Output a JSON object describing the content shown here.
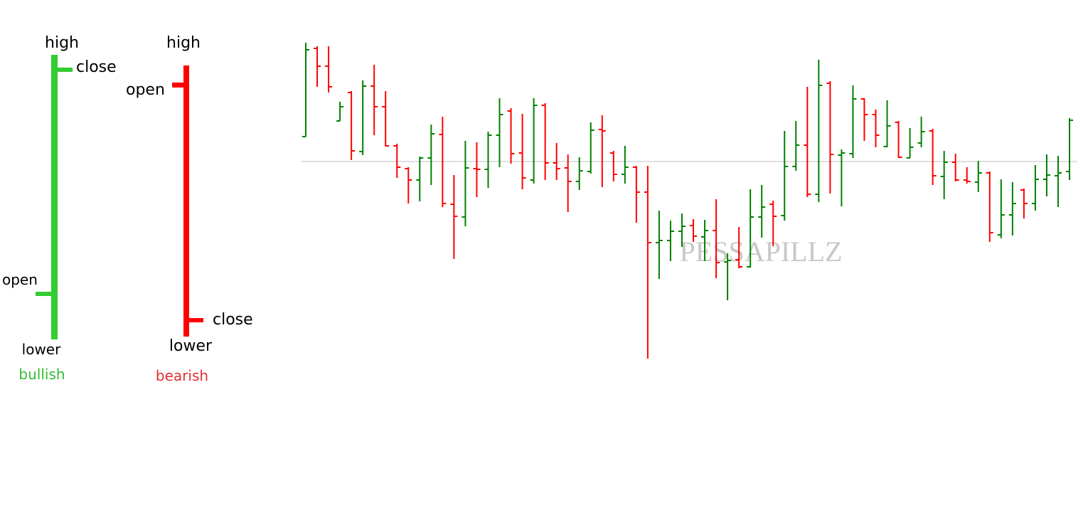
{
  "legend_diagram": {
    "bullish": {
      "label": "bullish",
      "high": "high",
      "close": "close",
      "open": "open",
      "low": "lower"
    },
    "bearish": {
      "label": "bearish",
      "high": "high",
      "open": "open",
      "close": "close",
      "low": "lower"
    }
  },
  "chart_data": {
    "type": "ohlc",
    "watermark": "PESSAPILLZ",
    "up_color": "#008000",
    "down_color": "#ff0000",
    "reference_line": 293,
    "ylim": [
      0,
      480
    ],
    "open": [
      328,
      452,
      427,
      350,
      390,
      307,
      399,
      370,
      315,
      283,
      267,
      298,
      331,
      233,
      215,
      283,
      282,
      330,
      364,
      305,
      267,
      372,
      291,
      284,
      265,
      279,
      338,
      305,
      275,
      285,
      250,
      179,
      182,
      195,
      203,
      187,
      196,
      152,
      155,
      145,
      215,
      233,
      217,
      286,
      316,
      247,
      403,
      302,
      304,
      381,
      359,
      314,
      348,
      298,
      319,
      336,
      272,
      292,
      267,
      264,
      277,
      190,
      218,
      253,
      234,
      268,
      273,
      279
    ],
    "high": [
      460,
      455,
      455,
      377,
      392,
      407,
      429,
      392,
      318,
      285,
      300,
      345,
      356,
      274,
      322,
      320,
      335,
      382,
      368,
      360,
      382,
      375,
      319,
      303,
      299,
      348,
      358,
      308,
      315,
      287,
      287,
      224,
      210,
      220,
      212,
      211,
      240,
      164,
      201,
      254,
      260,
      238,
      336,
      350,
      398,
      436,
      406,
      310,
      400,
      382,
      366,
      379,
      350,
      340,
      356,
      339,
      308,
      304,
      285,
      294,
      279,
      268,
      264,
      255,
      288,
      303,
      301,
      354
    ],
    "low": [
      328,
      398,
      390,
      350,
      295,
      302,
      330,
      314,
      270,
      234,
      237,
      260,
      229,
      156,
      202,
      243,
      256,
      285,
      290,
      254,
      262,
      267,
      267,
      222,
      253,
      276,
      257,
      265,
      262,
      207,
      16,
      128,
      153,
      173,
      180,
      153,
      129,
      98,
      143,
      144,
      186,
      174,
      210,
      280,
      243,
      236,
      248,
      230,
      298,
      322,
      313,
      313,
      298,
      298,
      313,
      260,
      240,
      265,
      262,
      250,
      180,
      185,
      189,
      213,
      224,
      244,
      229,
      267
    ],
    "close": [
      450,
      427,
      398,
      370,
      308,
      399,
      370,
      315,
      285,
      267,
      298,
      332,
      234,
      216,
      284,
      282,
      330,
      359,
      304,
      270,
      372,
      291,
      283,
      265,
      280,
      337,
      336,
      275,
      285,
      250,
      179,
      182,
      195,
      202,
      188,
      196,
      151,
      154,
      145,
      215,
      229,
      216,
      286,
      316,
      247,
      400,
      303,
      305,
      381,
      359,
      330,
      343,
      299,
      313,
      335,
      273,
      292,
      267,
      265,
      277,
      193,
      218,
      234,
      234,
      268,
      274,
      277,
      351
    ]
  }
}
